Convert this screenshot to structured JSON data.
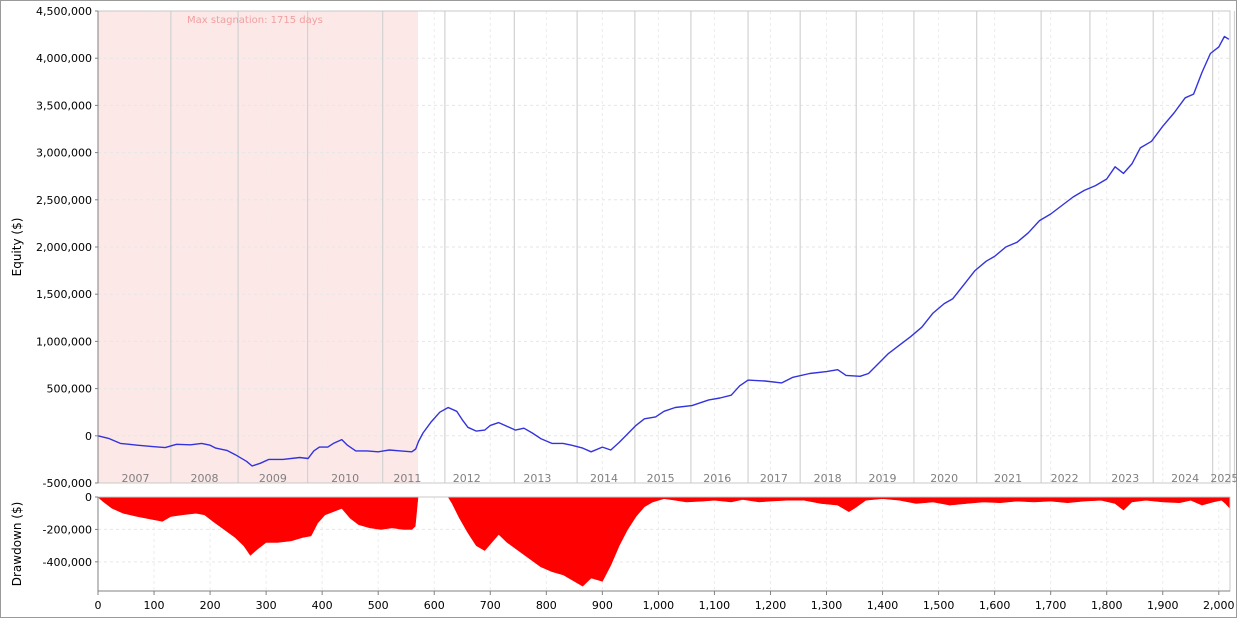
{
  "chart_data": [
    {
      "type": "line",
      "name": "equity-panel",
      "ylabel": "Equity ($)",
      "ylim": [
        -500000,
        4500000
      ],
      "yticks": [
        "4,500,000",
        "4,000,000",
        "3,500,000",
        "3,000,000",
        "2,500,000",
        "2,000,000",
        "1,500,000",
        "1,000,000",
        "500,000",
        "0",
        "-500,000"
      ],
      "ytick_values": [
        4500000,
        4000000,
        3500000,
        3000000,
        2500000,
        2000000,
        1500000,
        1000000,
        500000,
        0,
        -500000
      ],
      "xlim": [
        0,
        2020
      ],
      "line_color": "#3333dd",
      "stagnation": {
        "label": "Max stagnation: 1715 days",
        "x_start": 0,
        "x_end": 571,
        "color": "#fde8e8"
      },
      "year_boundaries": [
        130,
        250,
        374,
        508,
        619,
        743,
        855,
        958,
        1058,
        1160,
        1253,
        1353,
        1456,
        1568,
        1683,
        1770,
        1883,
        1989,
        2028
      ],
      "years": [
        {
          "label": "2007",
          "x": 67
        },
        {
          "label": "2008",
          "x": 190
        },
        {
          "label": "2009",
          "x": 312
        },
        {
          "label": "2010",
          "x": 441
        },
        {
          "label": "2011",
          "x": 552
        },
        {
          "label": "2012",
          "x": 658
        },
        {
          "label": "2013",
          "x": 784
        },
        {
          "label": "2014",
          "x": 903
        },
        {
          "label": "2015",
          "x": 1004
        },
        {
          "label": "2016",
          "x": 1105
        },
        {
          "label": "2017",
          "x": 1206
        },
        {
          "label": "2018",
          "x": 1302
        },
        {
          "label": "2019",
          "x": 1400
        },
        {
          "label": "2020",
          "x": 1510
        },
        {
          "label": "2021",
          "x": 1624
        },
        {
          "label": "2022",
          "x": 1725
        },
        {
          "label": "2023",
          "x": 1833
        },
        {
          "label": "2024",
          "x": 1940
        },
        {
          "label": "2025",
          "x": 2010
        }
      ],
      "points": [
        [
          0,
          0
        ],
        [
          20,
          -30000
        ],
        [
          40,
          -80000
        ],
        [
          70,
          -100000
        ],
        [
          100,
          -115000
        ],
        [
          120,
          -125000
        ],
        [
          140,
          -90000
        ],
        [
          165,
          -95000
        ],
        [
          185,
          -80000
        ],
        [
          200,
          -100000
        ],
        [
          210,
          -130000
        ],
        [
          230,
          -155000
        ],
        [
          245,
          -200000
        ],
        [
          265,
          -270000
        ],
        [
          275,
          -320000
        ],
        [
          290,
          -290000
        ],
        [
          305,
          -250000
        ],
        [
          330,
          -250000
        ],
        [
          360,
          -230000
        ],
        [
          375,
          -240000
        ],
        [
          385,
          -160000
        ],
        [
          395,
          -120000
        ],
        [
          410,
          -120000
        ],
        [
          420,
          -80000
        ],
        [
          435,
          -40000
        ],
        [
          445,
          -100000
        ],
        [
          460,
          -160000
        ],
        [
          480,
          -160000
        ],
        [
          500,
          -170000
        ],
        [
          520,
          -150000
        ],
        [
          540,
          -160000
        ],
        [
          560,
          -170000
        ],
        [
          567,
          -140000
        ],
        [
          572,
          -60000
        ],
        [
          580,
          30000
        ],
        [
          595,
          150000
        ],
        [
          610,
          250000
        ],
        [
          625,
          300000
        ],
        [
          640,
          260000
        ],
        [
          650,
          170000
        ],
        [
          660,
          90000
        ],
        [
          675,
          50000
        ],
        [
          690,
          60000
        ],
        [
          700,
          110000
        ],
        [
          715,
          140000
        ],
        [
          730,
          100000
        ],
        [
          745,
          60000
        ],
        [
          760,
          80000
        ],
        [
          775,
          30000
        ],
        [
          790,
          -30000
        ],
        [
          810,
          -80000
        ],
        [
          830,
          -80000
        ],
        [
          845,
          -100000
        ],
        [
          865,
          -130000
        ],
        [
          880,
          -170000
        ],
        [
          900,
          -120000
        ],
        [
          915,
          -150000
        ],
        [
          930,
          -70000
        ],
        [
          945,
          20000
        ],
        [
          960,
          110000
        ],
        [
          975,
          180000
        ],
        [
          995,
          200000
        ],
        [
          1010,
          260000
        ],
        [
          1030,
          300000
        ],
        [
          1060,
          320000
        ],
        [
          1090,
          380000
        ],
        [
          1110,
          400000
        ],
        [
          1130,
          430000
        ],
        [
          1145,
          530000
        ],
        [
          1160,
          590000
        ],
        [
          1190,
          580000
        ],
        [
          1220,
          560000
        ],
        [
          1240,
          620000
        ],
        [
          1270,
          660000
        ],
        [
          1300,
          680000
        ],
        [
          1320,
          700000
        ],
        [
          1335,
          640000
        ],
        [
          1360,
          630000
        ],
        [
          1375,
          660000
        ],
        [
          1390,
          750000
        ],
        [
          1410,
          870000
        ],
        [
          1430,
          960000
        ],
        [
          1450,
          1050000
        ],
        [
          1470,
          1150000
        ],
        [
          1490,
          1300000
        ],
        [
          1510,
          1400000
        ],
        [
          1525,
          1450000
        ],
        [
          1545,
          1600000
        ],
        [
          1565,
          1750000
        ],
        [
          1585,
          1850000
        ],
        [
          1600,
          1900000
        ],
        [
          1620,
          2000000
        ],
        [
          1640,
          2050000
        ],
        [
          1660,
          2150000
        ],
        [
          1680,
          2280000
        ],
        [
          1700,
          2350000
        ],
        [
          1720,
          2440000
        ],
        [
          1740,
          2530000
        ],
        [
          1760,
          2600000
        ],
        [
          1780,
          2650000
        ],
        [
          1800,
          2720000
        ],
        [
          1815,
          2850000
        ],
        [
          1830,
          2780000
        ],
        [
          1845,
          2880000
        ],
        [
          1860,
          3050000
        ],
        [
          1880,
          3120000
        ],
        [
          1900,
          3280000
        ],
        [
          1920,
          3420000
        ],
        [
          1940,
          3580000
        ],
        [
          1955,
          3620000
        ],
        [
          1970,
          3850000
        ],
        [
          1985,
          4050000
        ],
        [
          2000,
          4120000
        ],
        [
          2010,
          4230000
        ],
        [
          2018,
          4200000
        ]
      ]
    },
    {
      "type": "area",
      "name": "drawdown-panel",
      "ylabel": "Drawdown ($)",
      "ylim": [
        -580000,
        0
      ],
      "yticks": [
        "0",
        "-200,000",
        "-400,000"
      ],
      "ytick_values": [
        0,
        -200000,
        -400000
      ],
      "xlim": [
        0,
        2020
      ],
      "xticks": [
        "0",
        "100",
        "200",
        "300",
        "400",
        "500",
        "600",
        "700",
        "800",
        "900",
        "1,000",
        "1,100",
        "1,200",
        "1,300",
        "1,400",
        "1,500",
        "1,600",
        "1,700",
        "1,800",
        "1,900",
        "2,000"
      ],
      "xtick_values": [
        0,
        100,
        200,
        300,
        400,
        500,
        600,
        700,
        800,
        900,
        1000,
        1100,
        1200,
        1300,
        1400,
        1500,
        1600,
        1700,
        1800,
        1900,
        2000
      ],
      "fill_color": "#ff0000",
      "points": [
        [
          0,
          0
        ],
        [
          10,
          -30000
        ],
        [
          25,
          -70000
        ],
        [
          45,
          -100000
        ],
        [
          70,
          -120000
        ],
        [
          100,
          -140000
        ],
        [
          115,
          -150000
        ],
        [
          130,
          -120000
        ],
        [
          150,
          -110000
        ],
        [
          175,
          -100000
        ],
        [
          190,
          -110000
        ],
        [
          205,
          -150000
        ],
        [
          225,
          -200000
        ],
        [
          245,
          -250000
        ],
        [
          260,
          -300000
        ],
        [
          272,
          -360000
        ],
        [
          285,
          -320000
        ],
        [
          300,
          -280000
        ],
        [
          320,
          -280000
        ],
        [
          345,
          -270000
        ],
        [
          365,
          -250000
        ],
        [
          380,
          -240000
        ],
        [
          392,
          -160000
        ],
        [
          405,
          -110000
        ],
        [
          420,
          -90000
        ],
        [
          435,
          -70000
        ],
        [
          450,
          -130000
        ],
        [
          465,
          -170000
        ],
        [
          485,
          -190000
        ],
        [
          505,
          -200000
        ],
        [
          525,
          -190000
        ],
        [
          545,
          -200000
        ],
        [
          560,
          -200000
        ],
        [
          566,
          -180000
        ],
        [
          571,
          0
        ],
        [
          600,
          0
        ],
        [
          625,
          0
        ],
        [
          632,
          -40000
        ],
        [
          645,
          -130000
        ],
        [
          660,
          -220000
        ],
        [
          675,
          -300000
        ],
        [
          690,
          -330000
        ],
        [
          700,
          -290000
        ],
        [
          715,
          -230000
        ],
        [
          730,
          -280000
        ],
        [
          750,
          -330000
        ],
        [
          770,
          -380000
        ],
        [
          790,
          -430000
        ],
        [
          810,
          -460000
        ],
        [
          830,
          -480000
        ],
        [
          850,
          -520000
        ],
        [
          865,
          -550000
        ],
        [
          880,
          -500000
        ],
        [
          900,
          -520000
        ],
        [
          915,
          -420000
        ],
        [
          930,
          -300000
        ],
        [
          945,
          -200000
        ],
        [
          960,
          -120000
        ],
        [
          975,
          -60000
        ],
        [
          990,
          -30000
        ],
        [
          1010,
          -10000
        ],
        [
          1030,
          -20000
        ],
        [
          1050,
          -30000
        ],
        [
          1080,
          -25000
        ],
        [
          1100,
          -20000
        ],
        [
          1130,
          -30000
        ],
        [
          1150,
          -15000
        ],
        [
          1180,
          -30000
        ],
        [
          1200,
          -25000
        ],
        [
          1230,
          -20000
        ],
        [
          1260,
          -20000
        ],
        [
          1290,
          -40000
        ],
        [
          1320,
          -50000
        ],
        [
          1340,
          -90000
        ],
        [
          1350,
          -70000
        ],
        [
          1370,
          -20000
        ],
        [
          1400,
          -10000
        ],
        [
          1430,
          -20000
        ],
        [
          1460,
          -40000
        ],
        [
          1490,
          -30000
        ],
        [
          1520,
          -50000
        ],
        [
          1550,
          -40000
        ],
        [
          1580,
          -30000
        ],
        [
          1610,
          -35000
        ],
        [
          1640,
          -25000
        ],
        [
          1670,
          -30000
        ],
        [
          1700,
          -25000
        ],
        [
          1730,
          -35000
        ],
        [
          1760,
          -25000
        ],
        [
          1790,
          -20000
        ],
        [
          1815,
          -40000
        ],
        [
          1830,
          -80000
        ],
        [
          1845,
          -30000
        ],
        [
          1870,
          -20000
        ],
        [
          1900,
          -30000
        ],
        [
          1930,
          -35000
        ],
        [
          1950,
          -20000
        ],
        [
          1970,
          -50000
        ],
        [
          1990,
          -30000
        ],
        [
          2005,
          -20000
        ],
        [
          2012,
          -40000
        ],
        [
          2020,
          -70000
        ]
      ]
    }
  ]
}
